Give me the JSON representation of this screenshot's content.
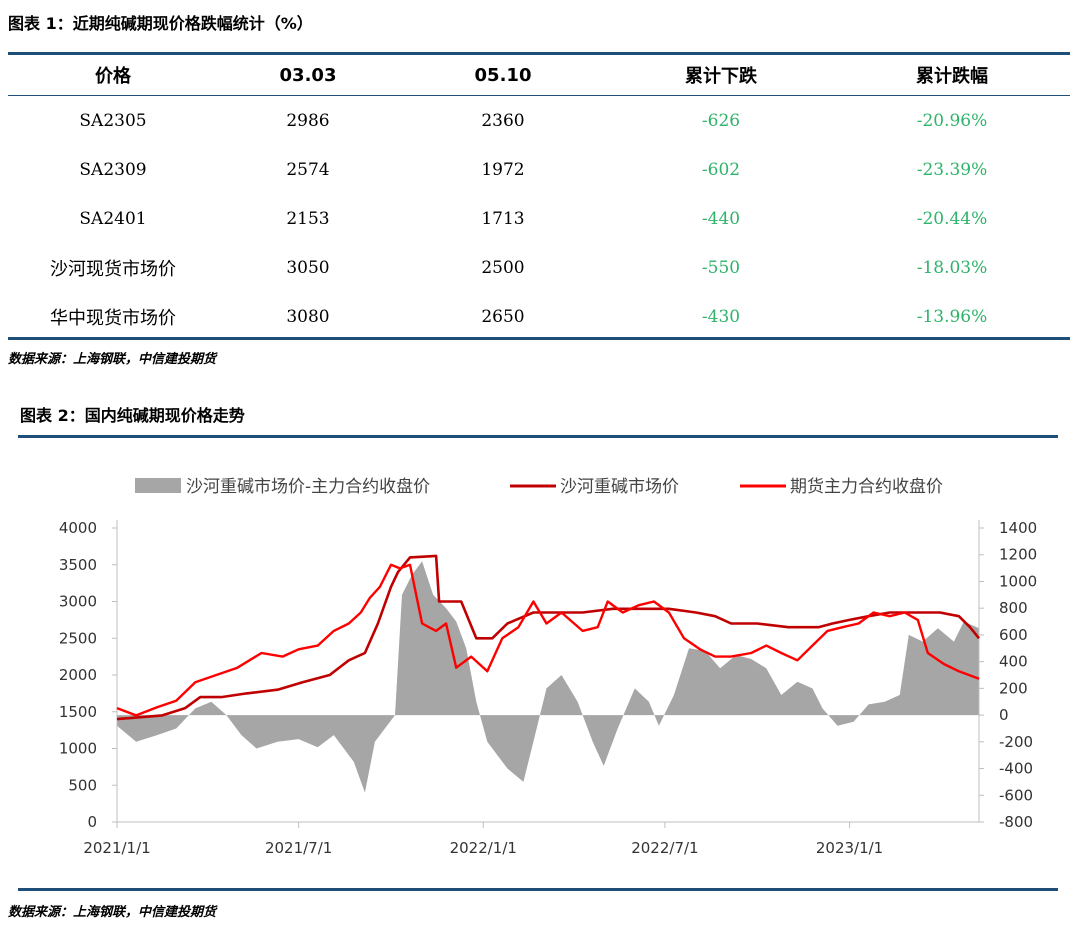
{
  "table_title": "图表 1：近期纯碱期现价格跌幅统计（%）",
  "table": {
    "headers": [
      "价格",
      "03.03",
      "05.10",
      "累计下跌",
      "累计跌幅"
    ],
    "rows": [
      [
        "SA2305",
        "2986",
        "2360",
        "-626",
        "-20.96%"
      ],
      [
        "SA2309",
        "2574",
        "1972",
        "-602",
        "-23.39%"
      ],
      [
        "SA2401",
        "2153",
        "1713",
        "-440",
        "-20.44%"
      ],
      [
        "沙河现货市场价",
        "3050",
        "2500",
        "-550",
        "-18.03%"
      ],
      [
        "华中现货市场价",
        "3080",
        "2650",
        "-430",
        "-13.96%"
      ]
    ]
  },
  "source_1": "数据来源：上海钢联，中信建投期货",
  "chart_title": "图表 2：国内纯碱期现价格走势",
  "source_2": "数据来源：上海钢联，中信建投期货",
  "colors": {
    "spread": "#a6a6a6",
    "spot": "#c00000",
    "futures": "#ff0000",
    "rule": "#1f4e79",
    "negative_text": "#2fb36a"
  },
  "chart_data": {
    "type": "line",
    "x_ticks": [
      "2021/1/1",
      "2021/7/1",
      "2022/1/1",
      "2022/7/1",
      "2023/1/1"
    ],
    "x_range": [
      "2021-01-01",
      "2023-05-10"
    ],
    "left_axis": {
      "ylim": [
        0,
        4000
      ],
      "ticks": [
        0,
        500,
        1000,
        1500,
        2000,
        2500,
        3000,
        3500,
        4000
      ]
    },
    "right_axis": {
      "ylim": [
        -800,
        1400
      ],
      "ticks": [
        -800,
        -600,
        -400,
        -200,
        0,
        200,
        400,
        600,
        800,
        1000,
        1200,
        1400
      ]
    },
    "series": [
      {
        "name": "沙河重碱市场价-主力合约收盘价",
        "type": "area",
        "axis": "right",
        "points": [
          [
            "2021-01-01",
            -80
          ],
          [
            "2021-01-20",
            -200
          ],
          [
            "2021-02-10",
            -150
          ],
          [
            "2021-03-01",
            -100
          ],
          [
            "2021-03-20",
            50
          ],
          [
            "2021-04-05",
            100
          ],
          [
            "2021-04-20",
            0
          ],
          [
            "2021-05-05",
            -150
          ],
          [
            "2021-05-20",
            -250
          ],
          [
            "2021-06-10",
            -200
          ],
          [
            "2021-07-01",
            -180
          ],
          [
            "2021-07-20",
            -240
          ],
          [
            "2021-08-05",
            -150
          ],
          [
            "2021-08-25",
            -350
          ],
          [
            "2021-09-05",
            -580
          ],
          [
            "2021-09-15",
            -200
          ],
          [
            "2021-09-25",
            -100
          ],
          [
            "2021-10-05",
            0
          ],
          [
            "2021-10-12",
            900
          ],
          [
            "2021-10-22",
            1050
          ],
          [
            "2021-11-01",
            1150
          ],
          [
            "2021-11-12",
            900
          ],
          [
            "2021-11-25",
            800
          ],
          [
            "2021-12-05",
            700
          ],
          [
            "2021-12-15",
            500
          ],
          [
            "2021-12-25",
            100
          ],
          [
            "2022-01-05",
            -200
          ],
          [
            "2022-01-25",
            -400
          ],
          [
            "2022-02-10",
            -500
          ],
          [
            "2022-02-20",
            -200
          ],
          [
            "2022-03-05",
            200
          ],
          [
            "2022-03-20",
            300
          ],
          [
            "2022-04-05",
            100
          ],
          [
            "2022-04-20",
            -200
          ],
          [
            "2022-05-01",
            -380
          ],
          [
            "2022-05-15",
            -100
          ],
          [
            "2022-06-01",
            200
          ],
          [
            "2022-06-15",
            100
          ],
          [
            "2022-06-25",
            -80
          ],
          [
            "2022-07-10",
            150
          ],
          [
            "2022-07-25",
            500
          ],
          [
            "2022-08-10",
            480
          ],
          [
            "2022-08-25",
            350
          ],
          [
            "2022-09-10",
            450
          ],
          [
            "2022-09-25",
            420
          ],
          [
            "2022-10-10",
            350
          ],
          [
            "2022-10-25",
            150
          ],
          [
            "2022-11-10",
            250
          ],
          [
            "2022-11-25",
            200
          ],
          [
            "2022-12-05",
            50
          ],
          [
            "2022-12-20",
            -80
          ],
          [
            "2023-01-05",
            -50
          ],
          [
            "2023-01-20",
            80
          ],
          [
            "2023-02-05",
            100
          ],
          [
            "2023-02-20",
            150
          ],
          [
            "2023-03-01",
            600
          ],
          [
            "2023-03-15",
            550
          ],
          [
            "2023-03-30",
            650
          ],
          [
            "2023-04-15",
            550
          ],
          [
            "2023-04-25",
            700
          ],
          [
            "2023-05-10",
            650
          ]
        ]
      },
      {
        "name": "沙河重碱市场价",
        "type": "line",
        "axis": "left",
        "points": [
          [
            "2021-01-01",
            1400
          ],
          [
            "2021-02-15",
            1450
          ],
          [
            "2021-03-10",
            1550
          ],
          [
            "2021-03-25",
            1700
          ],
          [
            "2021-04-15",
            1700
          ],
          [
            "2021-05-10",
            1750
          ],
          [
            "2021-06-10",
            1800
          ],
          [
            "2021-07-05",
            1900
          ],
          [
            "2021-08-01",
            2000
          ],
          [
            "2021-08-20",
            2200
          ],
          [
            "2021-09-05",
            2300
          ],
          [
            "2021-09-18",
            2700
          ],
          [
            "2021-10-01",
            3200
          ],
          [
            "2021-10-08",
            3400
          ],
          [
            "2021-10-20",
            3600
          ],
          [
            "2021-11-15",
            3620
          ],
          [
            "2021-11-18",
            3000
          ],
          [
            "2021-12-10",
            3000
          ],
          [
            "2021-12-25",
            2500
          ],
          [
            "2022-01-10",
            2500
          ],
          [
            "2022-01-25",
            2700
          ],
          [
            "2022-02-20",
            2850
          ],
          [
            "2022-03-10",
            2850
          ],
          [
            "2022-04-10",
            2850
          ],
          [
            "2022-05-10",
            2900
          ],
          [
            "2022-06-05",
            2900
          ],
          [
            "2022-07-05",
            2900
          ],
          [
            "2022-08-01",
            2850
          ],
          [
            "2022-08-20",
            2800
          ],
          [
            "2022-09-05",
            2700
          ],
          [
            "2022-10-01",
            2700
          ],
          [
            "2022-11-01",
            2650
          ],
          [
            "2022-12-01",
            2650
          ],
          [
            "2022-12-15",
            2700
          ],
          [
            "2023-01-01",
            2750
          ],
          [
            "2023-01-20",
            2800
          ],
          [
            "2023-02-10",
            2850
          ],
          [
            "2023-03-01",
            2850
          ],
          [
            "2023-04-01",
            2850
          ],
          [
            "2023-04-20",
            2800
          ],
          [
            "2023-05-01",
            2650
          ],
          [
            "2023-05-10",
            2500
          ]
        ]
      },
      {
        "name": "期货主力合约收盘价",
        "type": "line",
        "axis": "left",
        "points": [
          [
            "2021-01-01",
            1550
          ],
          [
            "2021-01-20",
            1450
          ],
          [
            "2021-02-10",
            1560
          ],
          [
            "2021-03-01",
            1650
          ],
          [
            "2021-03-20",
            1900
          ],
          [
            "2021-04-10",
            2000
          ],
          [
            "2021-05-01",
            2100
          ],
          [
            "2021-05-25",
            2300
          ],
          [
            "2021-06-15",
            2250
          ],
          [
            "2021-07-01",
            2350
          ],
          [
            "2021-07-20",
            2400
          ],
          [
            "2021-08-05",
            2600
          ],
          [
            "2021-08-20",
            2700
          ],
          [
            "2021-09-01",
            2850
          ],
          [
            "2021-09-10",
            3050
          ],
          [
            "2021-09-20",
            3200
          ],
          [
            "2021-10-01",
            3500
          ],
          [
            "2021-10-10",
            3450
          ],
          [
            "2021-10-20",
            3500
          ],
          [
            "2021-11-01",
            2700
          ],
          [
            "2021-11-15",
            2600
          ],
          [
            "2021-11-25",
            2700
          ],
          [
            "2021-12-05",
            2100
          ],
          [
            "2021-12-20",
            2250
          ],
          [
            "2022-01-05",
            2050
          ],
          [
            "2022-01-20",
            2500
          ],
          [
            "2022-02-05",
            2650
          ],
          [
            "2022-02-20",
            3000
          ],
          [
            "2022-03-05",
            2700
          ],
          [
            "2022-03-20",
            2850
          ],
          [
            "2022-04-10",
            2600
          ],
          [
            "2022-04-25",
            2650
          ],
          [
            "2022-05-05",
            3000
          ],
          [
            "2022-05-20",
            2850
          ],
          [
            "2022-06-05",
            2950
          ],
          [
            "2022-06-20",
            3000
          ],
          [
            "2022-07-05",
            2850
          ],
          [
            "2022-07-20",
            2500
          ],
          [
            "2022-08-05",
            2350
          ],
          [
            "2022-08-20",
            2250
          ],
          [
            "2022-09-05",
            2250
          ],
          [
            "2022-09-25",
            2300
          ],
          [
            "2022-10-10",
            2400
          ],
          [
            "2022-10-25",
            2300
          ],
          [
            "2022-11-10",
            2200
          ],
          [
            "2022-11-25",
            2400
          ],
          [
            "2022-12-10",
            2600
          ],
          [
            "2022-12-25",
            2650
          ],
          [
            "2023-01-10",
            2700
          ],
          [
            "2023-01-25",
            2850
          ],
          [
            "2023-02-10",
            2800
          ],
          [
            "2023-02-25",
            2850
          ],
          [
            "2023-03-10",
            2750
          ],
          [
            "2023-03-20",
            2300
          ],
          [
            "2023-04-05",
            2150
          ],
          [
            "2023-04-20",
            2050
          ],
          [
            "2023-05-10",
            1950
          ]
        ]
      }
    ]
  }
}
